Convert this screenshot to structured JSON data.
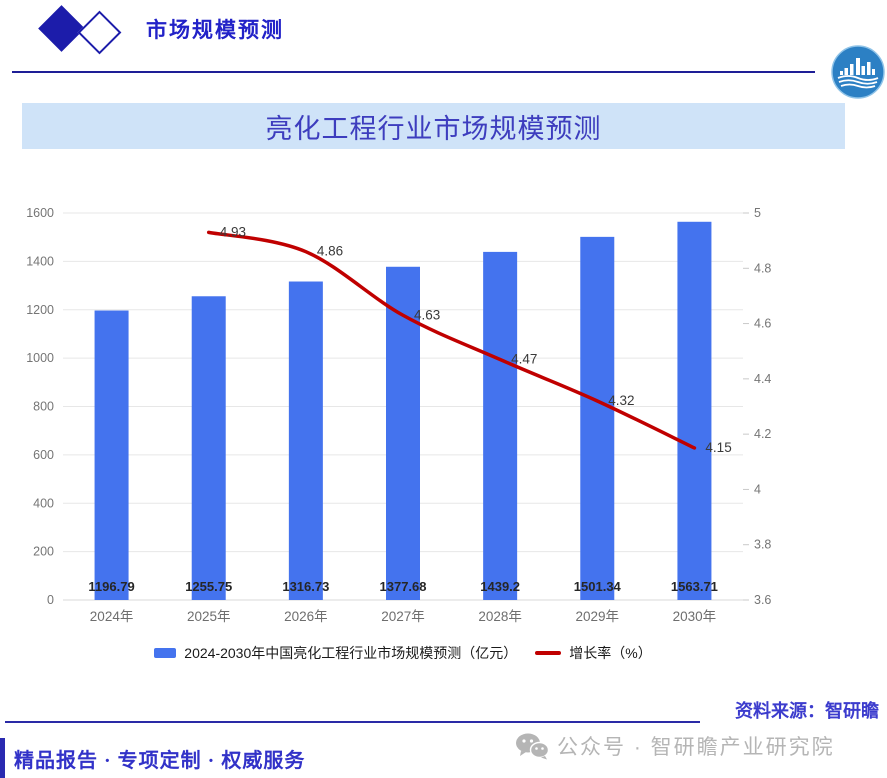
{
  "header": {
    "title": "市场规模预测"
  },
  "banner": {
    "title": "亮化工程行业市场规模预测"
  },
  "chart_data": {
    "type": "bar",
    "categories": [
      "2024年",
      "2025年",
      "2026年",
      "2027年",
      "2028年",
      "2029年",
      "2030年"
    ],
    "series": [
      {
        "name": "2024-2030年中国亮化工程行业市场规模预测（亿元）",
        "type": "bar",
        "axis": "left",
        "values": [
          1196.79,
          1255.75,
          1316.73,
          1377.68,
          1439.2,
          1501.34,
          1563.71
        ],
        "color": "#4473ee"
      },
      {
        "name": "增长率（%）",
        "type": "line",
        "axis": "right",
        "values": [
          null,
          4.93,
          4.86,
          4.63,
          4.47,
          4.32,
          4.15
        ],
        "color": "#c00000"
      }
    ],
    "left_axis": {
      "min": 0,
      "max": 1600,
      "step": 200
    },
    "right_axis": {
      "min": 3.6,
      "max": 5,
      "step": 0.2
    },
    "grid": true,
    "legend_position": "bottom",
    "title": "亮化工程行业市场规模预测"
  },
  "legend": {
    "bar_label": "2024-2030年中国亮化工程行业市场规模预测（亿元）",
    "line_label": "增长率（%）"
  },
  "source": {
    "text": "资料来源：智研瞻"
  },
  "watermark": {
    "icon": "wechat-icon",
    "text": "公众号 · 智研瞻产业研究院"
  },
  "footer": {
    "slogan": "精品报告 ·  专项定制 · 权威服务"
  },
  "colors": {
    "bar": "#4473ee",
    "line": "#c00000",
    "banner_bg": "#cfe3f8",
    "accent_blue": "#2222c8",
    "navy_rule": "#1e1e96",
    "grid": "#e7e7e7",
    "axis_text": "#757575",
    "watermark_gray": "#b5b5b5"
  }
}
